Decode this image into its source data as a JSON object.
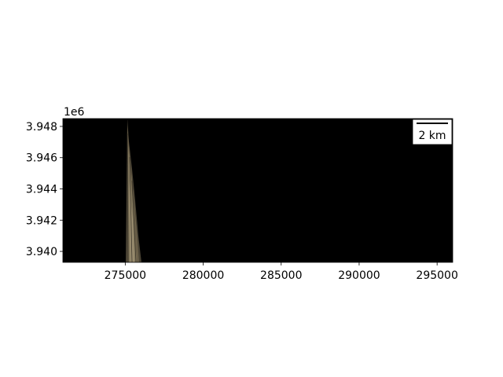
{
  "figure": {
    "background": "#ffffff",
    "map_background": "#000000",
    "raster_colors": [
      "#4a4334",
      "#6b6049",
      "#857a5f",
      "#9a8d70"
    ]
  },
  "axes": {
    "x_ticks": [
      275000,
      280000,
      285000,
      290000,
      295000
    ],
    "y_ticks": [
      3.94,
      3.942,
      3.944,
      3.946,
      3.948
    ],
    "y_offset_label": "1e6",
    "xlim": [
      271000,
      296000
    ],
    "ylim": [
      3939300,
      3948500
    ]
  },
  "scale_bar": {
    "label": "2 km",
    "length_m": 2000
  }
}
